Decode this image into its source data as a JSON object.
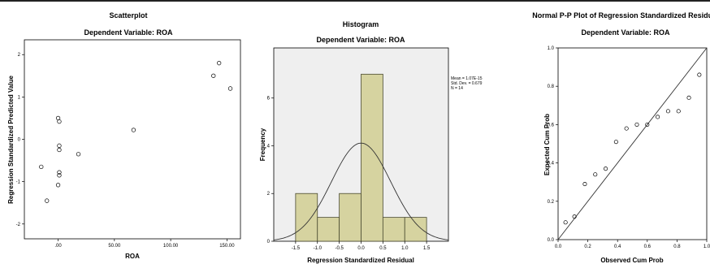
{
  "chart_data": [
    {
      "type": "scatter",
      "title": "Scatterplot",
      "subtitle": "Dependent Variable: ROA",
      "xlabel": "ROA",
      "ylabel": "Regression Standardized Predicted Value",
      "xlim": [
        -30,
        162
      ],
      "ylim": [
        -2.35,
        2.35
      ],
      "xticks": [
        ".00",
        "50.00",
        "100.00",
        "150.00"
      ],
      "xtick_values": [
        0,
        50,
        100,
        150
      ],
      "yticks": [
        "-2",
        "-1",
        "0",
        "1",
        "2"
      ],
      "ytick_values": [
        -2,
        -1,
        0,
        1,
        2
      ],
      "grid": false,
      "points": [
        {
          "x": -15,
          "y": -0.65
        },
        {
          "x": -10,
          "y": -1.45
        },
        {
          "x": 0,
          "y": 0.5
        },
        {
          "x": 1,
          "y": 0.42
        },
        {
          "x": 1,
          "y": -0.15
        },
        {
          "x": 1,
          "y": -0.25
        },
        {
          "x": 1,
          "y": -0.78
        },
        {
          "x": 1,
          "y": -0.85
        },
        {
          "x": 0,
          "y": -1.08
        },
        {
          "x": 18,
          "y": -0.35
        },
        {
          "x": 67,
          "y": 0.22
        },
        {
          "x": 138,
          "y": 1.5
        },
        {
          "x": 143,
          "y": 1.8
        },
        {
          "x": 153,
          "y": 1.2
        }
      ]
    },
    {
      "type": "bar",
      "title": "Histogram",
      "subtitle": "Dependent Variable: ROA",
      "xlabel": "Regression Standardized Residual",
      "ylabel": "Frequency",
      "xlim": [
        -2.0,
        2.0
      ],
      "ylim": [
        0,
        8.1
      ],
      "xticks": [
        "-1.5",
        "-1.0",
        "-0.5",
        "0.0",
        "0.5",
        "1.0",
        "1.5"
      ],
      "xtick_values": [
        -1.5,
        -1.0,
        -0.5,
        0.0,
        0.5,
        1.0,
        1.5
      ],
      "yticks": [
        "0",
        "2",
        "4",
        "6"
      ],
      "ytick_values": [
        0,
        2,
        4,
        6
      ],
      "bins": [
        {
          "from": -1.5,
          "to": -1.0,
          "value": 2
        },
        {
          "from": -1.0,
          "to": -0.5,
          "value": 1
        },
        {
          "from": -0.5,
          "to": 0.0,
          "value": 2
        },
        {
          "from": 0.0,
          "to": 0.5,
          "value": 7
        },
        {
          "from": 0.5,
          "to": 1.0,
          "value": 1
        },
        {
          "from": 1.0,
          "to": 1.5,
          "value": 1
        }
      ],
      "normal_curve": {
        "mean": 0.0,
        "sd": 0.679,
        "n": 14,
        "bin_width": 0.5
      },
      "stats": [
        "Mean = 1.07E-15",
        "Std. Dev. = 0.679",
        "N = 14"
      ],
      "colors": {
        "bar": "#d6d3a0",
        "bar_edge": "#4a4a30",
        "plot_bg": "#efefef"
      }
    },
    {
      "type": "scatter",
      "title": "Normal P-P Plot of Regression Standardized Residual",
      "subtitle": "Dependent Variable: ROA",
      "xlabel": "Observed Cum Prob",
      "ylabel": "Expected Cum Prob",
      "xlim": [
        0,
        1
      ],
      "ylim": [
        0,
        1
      ],
      "xticks": [
        "0.0",
        "0.2",
        "0.4",
        "0.6",
        "0.8",
        "1.0"
      ],
      "xtick_values": [
        0,
        0.2,
        0.4,
        0.6,
        0.8,
        1.0
      ],
      "yticks": [
        "0.0",
        "0.2",
        "0.4",
        "0.6",
        "0.8",
        "1.0"
      ],
      "ytick_values": [
        0,
        0.2,
        0.4,
        0.6,
        0.8,
        1.0
      ],
      "reference_line": [
        [
          0,
          0
        ],
        [
          1,
          1
        ]
      ],
      "points": [
        {
          "x": 0.05,
          "y": 0.09
        },
        {
          "x": 0.11,
          "y": 0.12
        },
        {
          "x": 0.18,
          "y": 0.29
        },
        {
          "x": 0.25,
          "y": 0.34
        },
        {
          "x": 0.32,
          "y": 0.37
        },
        {
          "x": 0.39,
          "y": 0.51
        },
        {
          "x": 0.46,
          "y": 0.58
        },
        {
          "x": 0.53,
          "y": 0.6
        },
        {
          "x": 0.6,
          "y": 0.6
        },
        {
          "x": 0.67,
          "y": 0.64
        },
        {
          "x": 0.74,
          "y": 0.67
        },
        {
          "x": 0.81,
          "y": 0.67
        },
        {
          "x": 0.88,
          "y": 0.74
        },
        {
          "x": 0.95,
          "y": 0.86
        }
      ]
    }
  ]
}
